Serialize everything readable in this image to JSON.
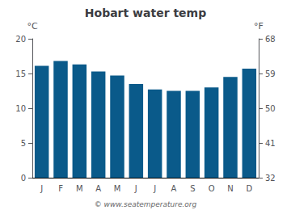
{
  "chart_data": {
    "type": "bar",
    "title": "Hobart water temp",
    "categories": [
      "J",
      "F",
      "M",
      "A",
      "M",
      "J",
      "J",
      "A",
      "S",
      "O",
      "N",
      "D"
    ],
    "values": [
      16.1,
      16.8,
      16.3,
      15.3,
      14.7,
      13.5,
      12.7,
      12.5,
      12.5,
      13.0,
      14.5,
      15.7
    ],
    "color": "#0a5a8a",
    "ylabel": "°C",
    "y2label": "°F",
    "ylim": [
      0,
      20
    ],
    "yticks": [
      0,
      5,
      10,
      15,
      20
    ],
    "y2lim": [
      32,
      68
    ],
    "y2ticks": [
      32,
      41,
      50,
      59,
      68
    ],
    "grid": false,
    "annotations": [
      "© www.seatemperature.org"
    ]
  }
}
